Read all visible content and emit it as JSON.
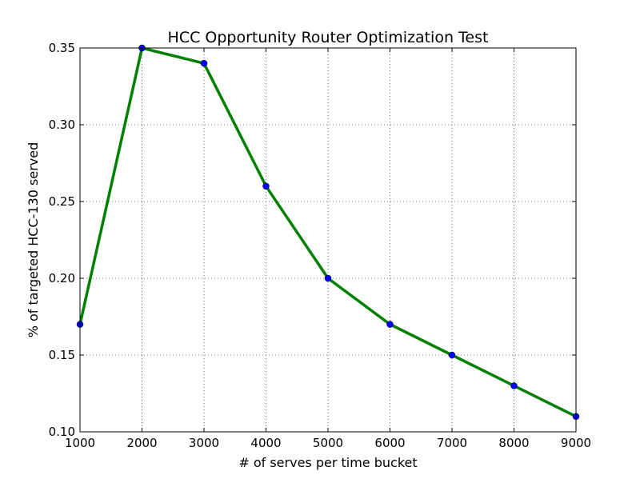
{
  "chart_data": {
    "type": "line",
    "title": "HCC Opportunity Router Optimization Test",
    "xlabel": "# of serves per time bucket",
    "ylabel": "% of targeted HCC-130 served",
    "x": [
      1000,
      2000,
      3000,
      4000,
      5000,
      6000,
      7000,
      8000,
      9000
    ],
    "series": [
      {
        "values": [
          0.17,
          0.35,
          0.34,
          0.26,
          0.2,
          0.17,
          0.15,
          0.13,
          0.11
        ],
        "line_color": "#008000",
        "marker_color": "#0000ff"
      }
    ],
    "xlim": [
      1000,
      9000
    ],
    "ylim": [
      0.1,
      0.35
    ],
    "xticks": [
      1000,
      2000,
      3000,
      4000,
      5000,
      6000,
      7000,
      8000,
      9000
    ],
    "xtick_labels": [
      "1000",
      "2000",
      "3000",
      "4000",
      "5000",
      "6000",
      "7000",
      "8000",
      "9000"
    ],
    "yticks": [
      0.1,
      0.15,
      0.2,
      0.25,
      0.3,
      0.35
    ],
    "ytick_labels": [
      "0.10",
      "0.15",
      "0.20",
      "0.25",
      "0.30",
      "0.35"
    ],
    "grid": true,
    "legend": "none"
  }
}
